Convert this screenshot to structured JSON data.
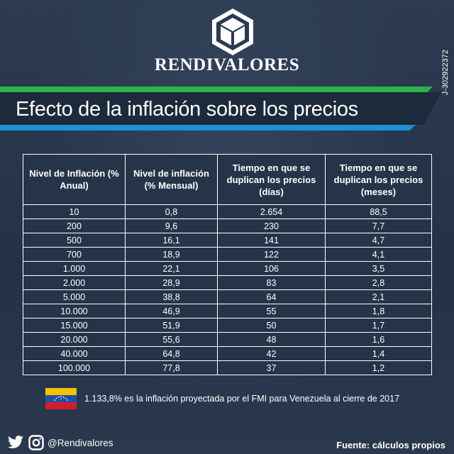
{
  "brand": {
    "name": "RENDIVALORES",
    "rif": "J-302922372"
  },
  "title": "Efecto de la inflación sobre los precios",
  "table": {
    "headers": {
      "annual": "Nivel de Inflación (% Anual)",
      "monthly": "Nivel de inflación (% Mensual)",
      "days": "Tiempo en que se duplican los precios (días)",
      "months": "Tiempo en que se duplican los precios (meses)"
    },
    "rows": [
      {
        "annual": "10",
        "monthly": "0,8",
        "days": "2.654",
        "months": "88,5"
      },
      {
        "annual": "200",
        "monthly": "9,6",
        "days": "230",
        "months": "7,7"
      },
      {
        "annual": "500",
        "monthly": "16,1",
        "days": "141",
        "months": "4,7"
      },
      {
        "annual": "700",
        "monthly": "18,9",
        "days": "122",
        "months": "4,1"
      },
      {
        "annual": "1.000",
        "monthly": "22,1",
        "days": "106",
        "months": "3,5"
      },
      {
        "annual": "2.000",
        "monthly": "28,9",
        "days": "83",
        "months": "2,8"
      },
      {
        "annual": "5.000",
        "monthly": "38,8",
        "days": "64",
        "months": "2,1"
      },
      {
        "annual": "10.000",
        "monthly": "46,9",
        "days": "55",
        "months": "1,8"
      },
      {
        "annual": "15.000",
        "monthly": "51,9",
        "days": "50",
        "months": "1,7"
      },
      {
        "annual": "20.000",
        "monthly": "55,6",
        "days": "48",
        "months": "1,6"
      },
      {
        "annual": "40.000",
        "monthly": "64,8",
        "days": "42",
        "months": "1,4"
      },
      {
        "annual": "100.000",
        "monthly": "77,8",
        "days": "37",
        "months": "1,2"
      }
    ]
  },
  "note": "1.133,8% es la inflación proyectada por el FMI para Venezuela al cierre de 2017",
  "social": {
    "handle": "@Rendivalores",
    "icons": [
      "twitter-icon",
      "instagram-icon"
    ]
  },
  "source": "Fuente: cálculos propios",
  "colors": {
    "background": "#28364b",
    "green": "#2bb34a",
    "blue": "#1f8fd6",
    "title_bar": "#1d2a3b"
  }
}
